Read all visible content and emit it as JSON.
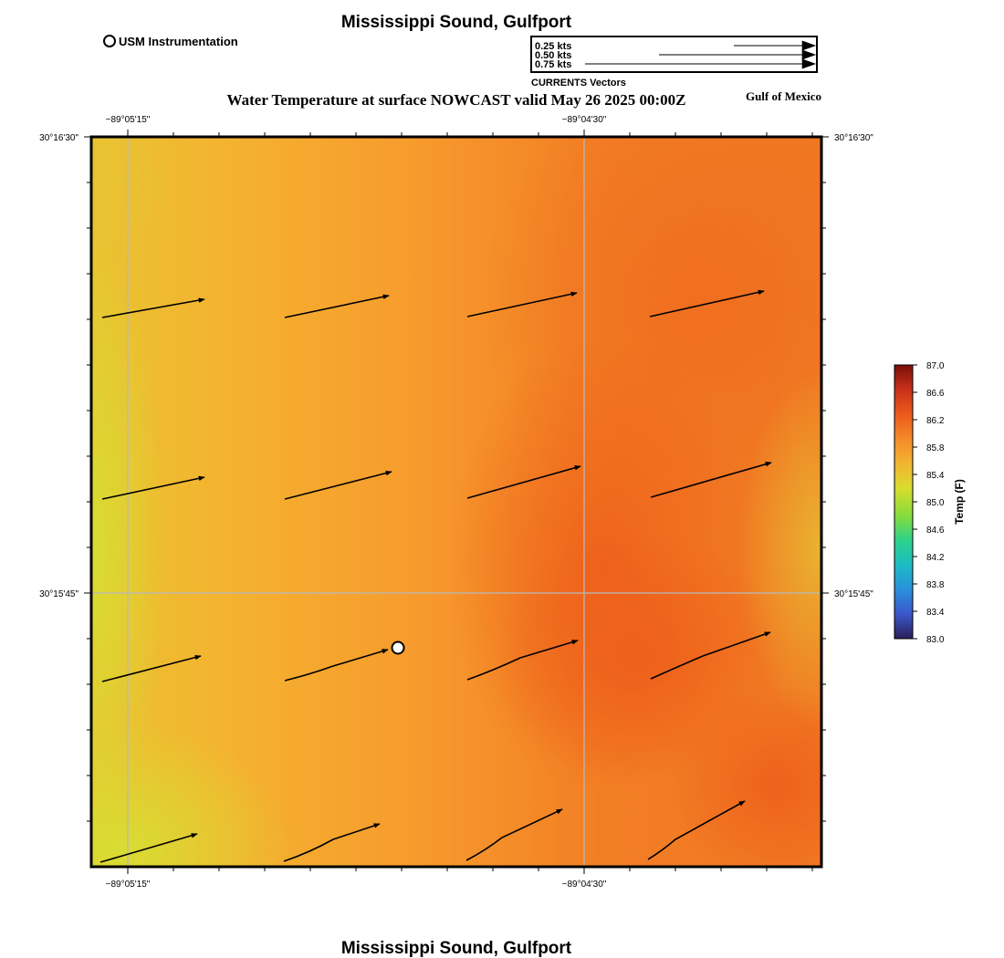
{
  "header": {
    "title": "Mississippi Sound, Gulfport",
    "subtitle": "Water Temperature at surface NOWCAST valid May 26 2025 00:00Z",
    "region_label": "Gulf of Mexico"
  },
  "footer": {
    "title": "Mississippi Sound, Gulfport"
  },
  "station_legend": {
    "label": "USM Instrumentation"
  },
  "vector_legend": {
    "title": "CURRENTS Vectors",
    "entries": [
      {
        "label": "0.25 kts",
        "speed_kts": 0.25
      },
      {
        "label": "0.50 kts",
        "speed_kts": 0.5
      },
      {
        "label": "0.75 kts",
        "speed_kts": 0.75
      }
    ]
  },
  "axes": {
    "lon_ticks": [
      "−89°05'15\"",
      "−89°04'30\""
    ],
    "lat_ticks": [
      "30°16'30\"",
      "30°15'45\""
    ]
  },
  "colorbar": {
    "label": "Temp (F)",
    "min": 83.0,
    "max": 87.0,
    "ticks": [
      "87.0",
      "86.6",
      "86.2",
      "85.8",
      "85.4",
      "85.0",
      "84.6",
      "84.2",
      "83.8",
      "83.4",
      "83.0"
    ],
    "colors": [
      "#2d1e5a",
      "#3a57c9",
      "#2a8fdc",
      "#1cbcc4",
      "#2fd28a",
      "#86dc3b",
      "#d9dc2e",
      "#f2b431",
      "#f58a2a",
      "#ec5a1c",
      "#c8301a",
      "#7a0f0a"
    ]
  },
  "map": {
    "colors": {
      "cool": "#d7de33",
      "mid": "#f7a42f",
      "warm": "#ee5d1a"
    },
    "station": {
      "name": "USM Instrumentation"
    }
  }
}
